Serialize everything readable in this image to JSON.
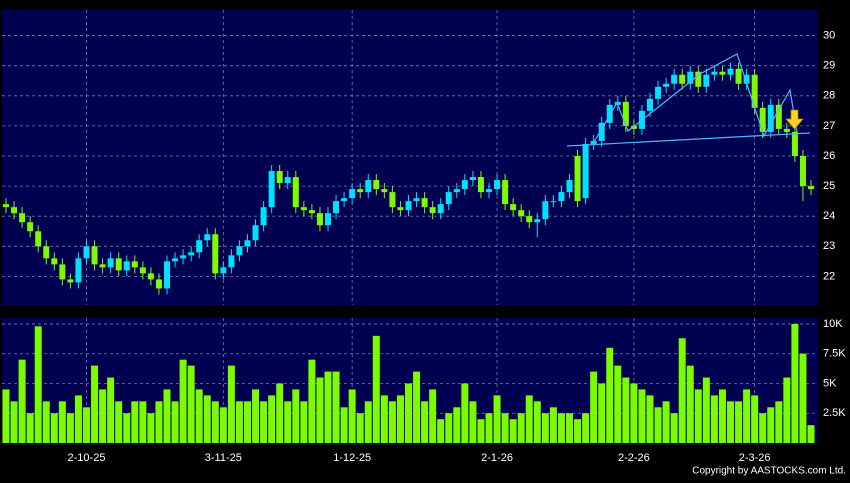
{
  "chart_data": [
    {
      "type": "candlestick",
      "categories": [
        null,
        null,
        null,
        null,
        null,
        null,
        null,
        null,
        null,
        null,
        "2-10-25",
        null,
        null,
        null,
        null,
        null,
        null,
        null,
        null,
        null,
        null,
        null,
        null,
        null,
        null,
        null,
        null,
        "3-11-25",
        null,
        null,
        null,
        null,
        null,
        null,
        null,
        null,
        null,
        null,
        null,
        null,
        null,
        null,
        null,
        "1-12-25",
        null,
        null,
        null,
        null,
        null,
        null,
        null,
        null,
        null,
        null,
        null,
        null,
        null,
        null,
        null,
        null,
        null,
        "2-1-26",
        null,
        null,
        null,
        null,
        null,
        null,
        null,
        null,
        null,
        null,
        null,
        null,
        null,
        null,
        null,
        null,
        "2-2-26",
        null,
        null,
        null,
        null,
        null,
        null,
        null,
        null,
        null,
        null,
        null,
        null,
        null,
        null,
        "2-3-26",
        null,
        null,
        null,
        null,
        null,
        null,
        null
      ],
      "open": [
        24.4,
        24.3,
        24.1,
        23.8,
        23.5,
        23.0,
        22.6,
        22.4,
        21.9,
        21.8,
        22.6,
        23.0,
        22.4,
        22.3,
        22.6,
        22.2,
        22.5,
        22.3,
        22.1,
        21.9,
        21.6,
        22.5,
        22.6,
        22.7,
        22.8,
        23.2,
        23.4,
        22.1,
        22.3,
        22.7,
        23.0,
        23.2,
        23.7,
        24.3,
        25.5,
        25.1,
        25.3,
        24.3,
        24.2,
        24.1,
        23.7,
        24.1,
        24.5,
        24.6,
        24.9,
        24.8,
        25.2,
        24.9,
        24.8,
        24.3,
        24.2,
        24.5,
        24.6,
        24.3,
        24.1,
        24.4,
        24.8,
        24.9,
        25.2,
        25.3,
        24.8,
        24.9,
        25.2,
        24.4,
        24.2,
        24.0,
        23.8,
        23.9,
        24.5,
        24.5,
        24.8,
        26.0,
        24.6,
        26.4,
        26.5,
        27.1,
        27.7,
        27.8,
        27.0,
        26.9,
        27.5,
        27.9,
        28.3,
        28.4,
        28.7,
        28.4,
        28.8,
        28.3,
        28.7,
        28.8,
        28.7,
        28.9,
        28.4,
        28.7,
        27.6,
        26.8,
        27.7,
        26.9,
        26.8,
        26.0,
        25.0
      ],
      "high": [
        24.6,
        24.5,
        24.3,
        24.0,
        23.7,
        23.2,
        22.8,
        22.6,
        22.1,
        22.8,
        23.2,
        23.2,
        22.6,
        22.8,
        22.8,
        22.7,
        22.7,
        22.5,
        22.3,
        22.1,
        22.7,
        22.8,
        22.9,
        23.0,
        23.4,
        23.6,
        23.6,
        22.5,
        22.9,
        23.2,
        23.4,
        23.9,
        24.5,
        25.7,
        25.7,
        25.5,
        25.5,
        24.5,
        24.4,
        24.3,
        24.3,
        24.7,
        24.8,
        25.1,
        25.1,
        25.4,
        25.4,
        25.1,
        25.0,
        24.5,
        24.7,
        24.8,
        24.8,
        24.5,
        24.6,
        25.0,
        25.1,
        25.4,
        25.5,
        25.5,
        25.1,
        25.4,
        25.4,
        24.6,
        24.4,
        24.2,
        24.1,
        24.7,
        24.7,
        25.0,
        25.4,
        26.2,
        26.6,
        26.7,
        27.3,
        27.9,
        28.0,
        28.0,
        27.2,
        27.7,
        28.1,
        28.5,
        28.6,
        28.9,
        28.9,
        29.0,
        29.0,
        28.9,
        29.0,
        29.0,
        29.1,
        29.1,
        28.9,
        28.9,
        27.8,
        27.9,
        27.9,
        27.1,
        27.0,
        26.2,
        25.2
      ],
      "low": [
        24.1,
        23.9,
        23.6,
        23.3,
        22.8,
        22.4,
        22.2,
        21.7,
        21.6,
        21.6,
        22.4,
        22.2,
        22.1,
        22.1,
        22.0,
        22.0,
        22.1,
        21.9,
        21.7,
        21.4,
        21.4,
        22.3,
        22.4,
        22.5,
        22.6,
        23.0,
        21.9,
        21.9,
        22.1,
        22.5,
        22.8,
        23.0,
        23.5,
        24.1,
        24.9,
        24.9,
        24.1,
        24.0,
        23.9,
        23.5,
        23.5,
        23.9,
        24.3,
        24.4,
        24.6,
        24.6,
        24.7,
        24.6,
        24.1,
        24.0,
        24.0,
        24.3,
        24.1,
        23.9,
        23.9,
        24.2,
        24.6,
        24.7,
        25.0,
        24.6,
        24.6,
        24.7,
        24.2,
        24.0,
        23.8,
        23.6,
        23.3,
        23.7,
        24.3,
        24.3,
        24.6,
        24.3,
        24.4,
        26.2,
        26.3,
        26.9,
        27.5,
        26.8,
        26.7,
        26.7,
        27.3,
        27.7,
        28.1,
        28.2,
        28.2,
        28.2,
        28.1,
        28.1,
        28.5,
        28.5,
        28.5,
        28.2,
        28.2,
        27.4,
        26.6,
        26.6,
        26.7,
        26.6,
        25.8,
        24.5,
        24.7
      ],
      "close": [
        24.3,
        24.1,
        23.8,
        23.5,
        23.0,
        22.6,
        22.4,
        21.9,
        21.8,
        22.6,
        23.0,
        22.4,
        22.3,
        22.6,
        22.2,
        22.5,
        22.3,
        22.1,
        21.9,
        21.6,
        22.5,
        22.6,
        22.7,
        22.8,
        23.2,
        23.4,
        22.1,
        22.3,
        22.7,
        23.0,
        23.2,
        23.7,
        24.3,
        25.5,
        25.1,
        25.3,
        24.3,
        24.2,
        24.1,
        23.7,
        24.1,
        24.5,
        24.6,
        24.9,
        24.8,
        25.2,
        24.9,
        24.8,
        24.3,
        24.2,
        24.5,
        24.6,
        24.3,
        24.1,
        24.4,
        24.8,
        24.9,
        25.2,
        25.3,
        24.8,
        24.9,
        25.2,
        24.4,
        24.2,
        24.0,
        23.8,
        23.9,
        24.5,
        24.5,
        24.8,
        25.2,
        24.5,
        26.4,
        26.5,
        27.1,
        27.7,
        27.8,
        27.0,
        26.9,
        27.5,
        27.9,
        28.3,
        28.4,
        28.7,
        28.4,
        28.8,
        28.3,
        28.7,
        28.8,
        28.7,
        28.9,
        28.4,
        28.7,
        27.6,
        26.8,
        27.7,
        26.9,
        26.8,
        26.0,
        25.0,
        24.9
      ],
      "up_color": "#00e0ff",
      "down_color": "#7cfc00",
      "ylim": [
        21.05,
        30.85
      ],
      "yticks": [
        22,
        23,
        24,
        25,
        26,
        27,
        28,
        29,
        30
      ],
      "grid": true
    },
    {
      "type": "bar",
      "values": [
        4500,
        3500,
        7000,
        2500,
        9800,
        3500,
        2500,
        3500,
        2500,
        4000,
        3000,
        6500,
        4500,
        5500,
        3500,
        2500,
        3500,
        3500,
        2500,
        3500,
        4500,
        3500,
        7000,
        6500,
        4500,
        4000,
        3500,
        3000,
        6500,
        3500,
        3500,
        4500,
        3500,
        4000,
        5000,
        3500,
        4500,
        3500,
        7000,
        5500,
        6000,
        6000,
        3000,
        4500,
        2500,
        3500,
        9000,
        4000,
        3500,
        4000,
        5000,
        6000,
        3500,
        4500,
        2000,
        2500,
        3000,
        5000,
        3500,
        2000,
        2500,
        4000,
        2500,
        2000,
        2500,
        4000,
        3500,
        2500,
        3000,
        2500,
        2500,
        2000,
        2500,
        6000,
        5000,
        8000,
        6500,
        5500,
        5000,
        4500,
        4000,
        3000,
        3500,
        2500,
        8800,
        6500,
        4500,
        5500,
        4000,
        4500,
        3500,
        3500,
        4500,
        4000,
        2500,
        3000,
        3500,
        5500,
        10000,
        7500,
        1500
      ],
      "color": "#7cfc00",
      "ylim": [
        0,
        10500
      ],
      "yticks": [
        {
          "value": 2500,
          "label": "2.5K"
        },
        {
          "value": 5000,
          "label": "5K"
        },
        {
          "value": 7500,
          "label": "7.5K"
        },
        {
          "value": 10000,
          "label": "10K"
        }
      ],
      "grid": true
    }
  ],
  "footer": "Copyright by AASTOCKS.com Ltd."
}
